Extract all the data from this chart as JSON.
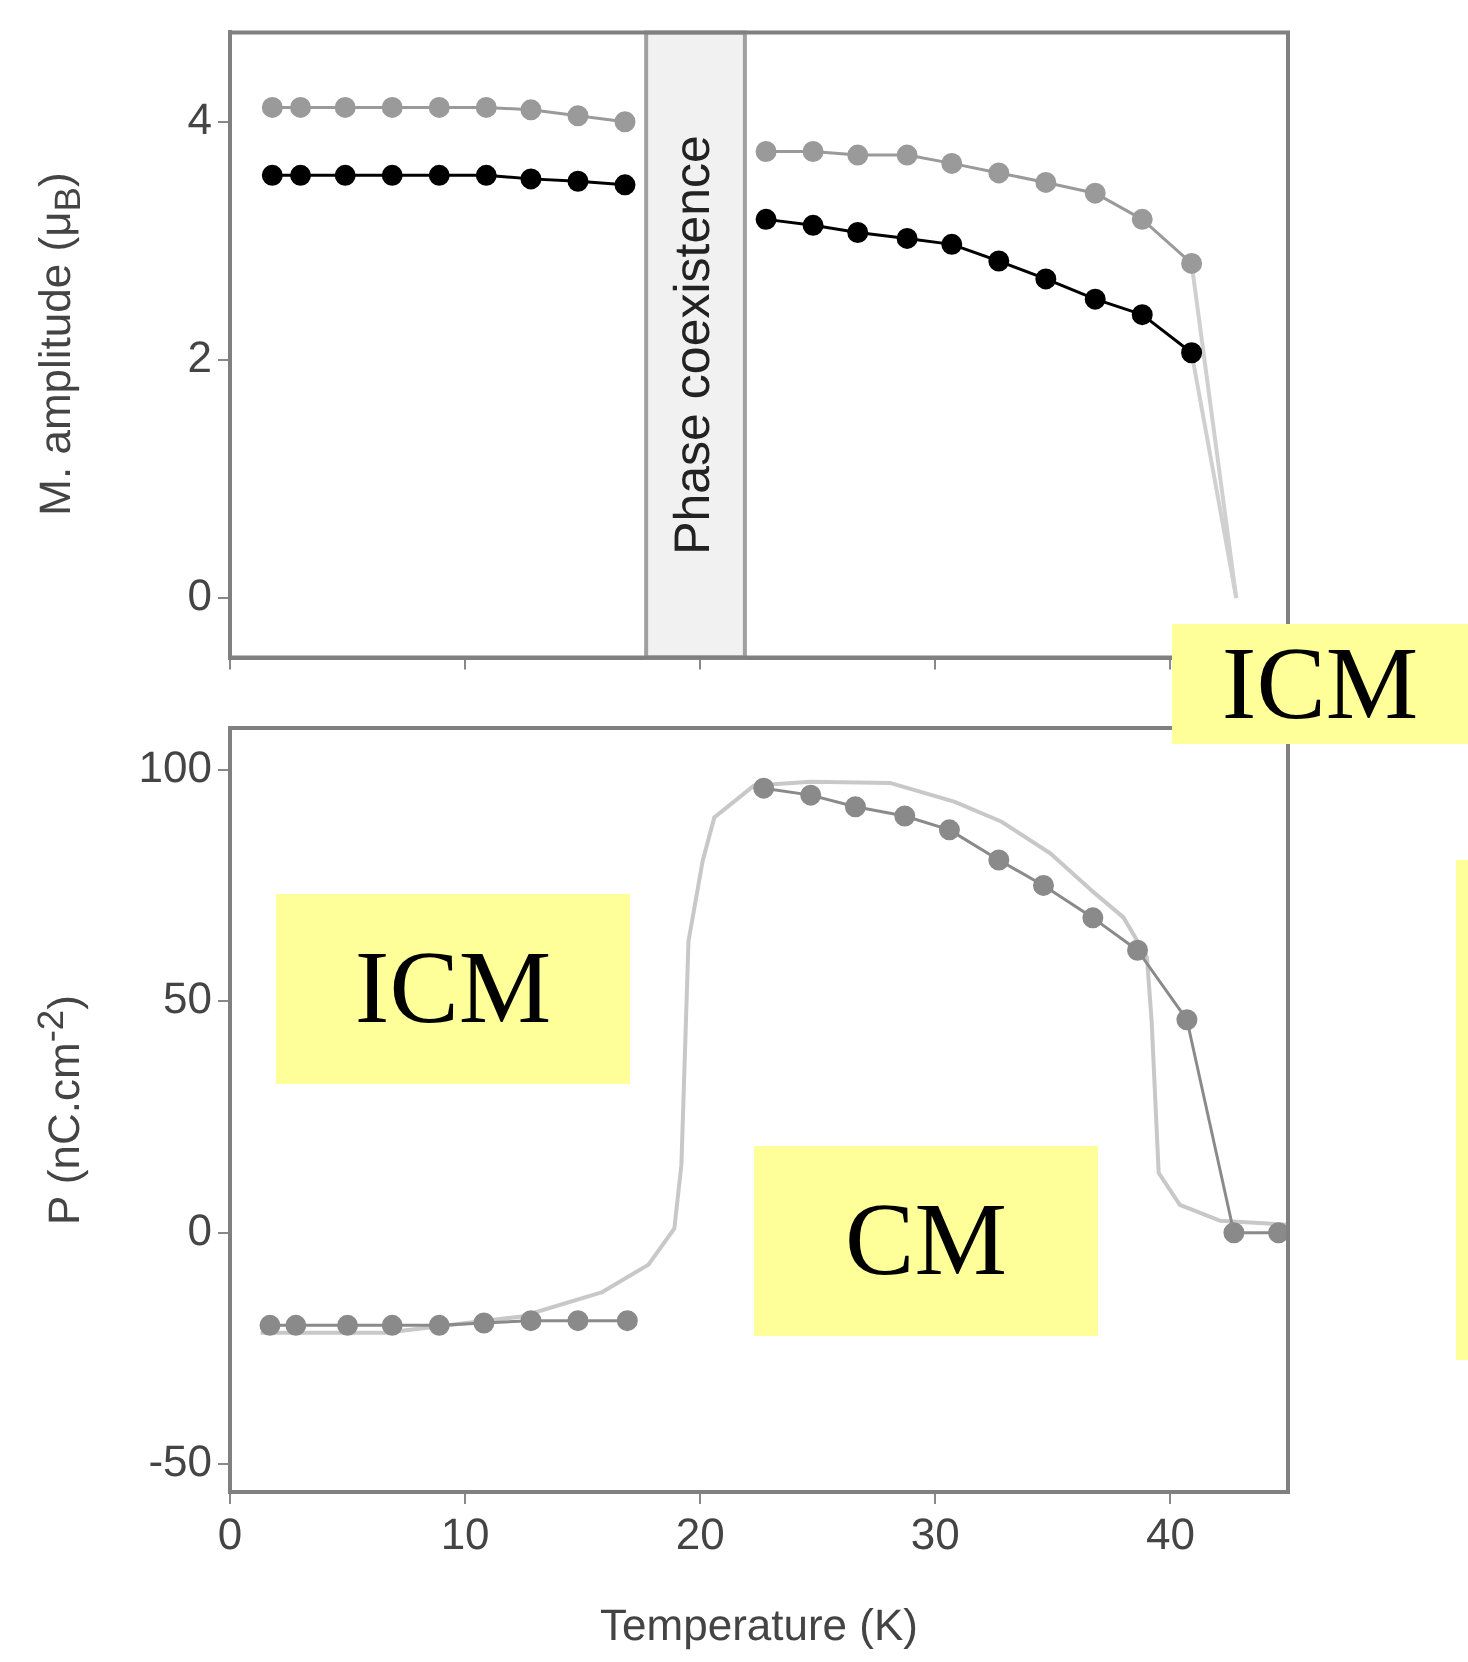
{
  "chart_data": [
    {
      "type": "line",
      "ylabel": "M. amplitude (μ$_{B}$)",
      "xlim": [
        0,
        45
      ],
      "xticks": [
        0,
        10,
        20,
        30,
        40
      ],
      "ylim": [
        -0.5,
        4.75
      ],
      "yticks": [
        0,
        2,
        4
      ],
      "tick_labels": "y",
      "grid": false,
      "legend": false,
      "marker": "circle",
      "bands": [
        {
          "axis": "x",
          "from": 17.7,
          "to": 21.9,
          "label": "Phase coexistence",
          "color": "#a0a0a0"
        }
      ],
      "series": [
        {
          "color": "#9a9a9a",
          "x": [
            1.8,
            3.0,
            4.9,
            6.9,
            8.9,
            10.9,
            12.8,
            14.8,
            16.8
          ],
          "values": [
            4.12,
            4.12,
            4.12,
            4.12,
            4.12,
            4.12,
            4.1,
            4.05,
            4.0
          ]
        },
        {
          "color": "#9a9a9a",
          "x": [
            22.8,
            24.8,
            26.7,
            28.8,
            30.7,
            32.7,
            34.7,
            36.8,
            38.8,
            40.9
          ],
          "values": [
            3.75,
            3.75,
            3.72,
            3.72,
            3.65,
            3.57,
            3.49,
            3.4,
            3.18,
            2.81
          ]
        },
        {
          "color": "#000000",
          "x": [
            1.8,
            3.0,
            4.9,
            6.9,
            8.9,
            10.9,
            12.8,
            14.8,
            16.8
          ],
          "values": [
            3.55,
            3.55,
            3.55,
            3.55,
            3.55,
            3.55,
            3.52,
            3.5,
            3.47
          ]
        },
        {
          "color": "#000000",
          "x": [
            22.8,
            24.8,
            26.7,
            28.8,
            30.7,
            32.7,
            34.7,
            36.8,
            38.8,
            40.9
          ],
          "values": [
            3.18,
            3.13,
            3.07,
            3.02,
            2.97,
            2.83,
            2.68,
            2.51,
            2.38,
            2.06
          ]
        },
        {
          "type": "line",
          "marker": "none",
          "color": "#d0d0d0",
          "x": [
            40.9,
            42.8
          ],
          "values": [
            2.81,
            0
          ]
        },
        {
          "type": "line",
          "marker": "none",
          "color": "#d0d0d0",
          "x": [
            40.9,
            42.8
          ],
          "values": [
            2.06,
            0
          ]
        }
      ]
    },
    {
      "type": "line",
      "xlabel": "Temperature (K)",
      "ylabel": "P (nC.cm$^{-2}$)",
      "xlim": [
        0,
        45
      ],
      "xticks": [
        0,
        10,
        20,
        30,
        40
      ],
      "ylim": [
        -56,
        109
      ],
      "yticks": [
        -50,
        0,
        50,
        100
      ],
      "grid": false,
      "legend": false,
      "marker": "circle",
      "annotations": [
        "ICM",
        "ICM",
        "CM"
      ],
      "series": [
        {
          "type": "line",
          "marker": "none",
          "color": "#c8c8c8",
          "x": [
            1.3,
            6.6,
            12.4,
            15.8,
            17.8,
            18.9,
            19.2,
            19.5,
            20.1,
            20.6,
            22.3,
            24.7,
            28.1,
            30.8,
            32.8,
            34.9,
            36.6,
            38.0,
            39.0,
            39.2,
            39.5,
            40.4,
            42.1,
            45
          ],
          "values": [
            -21.6,
            -21.6,
            -18.1,
            -12.9,
            -6.9,
            0.9,
            14.7,
            62.9,
            80.2,
            89.7,
            96.6,
            97.4,
            97.1,
            93.1,
            88.8,
            81.9,
            74.1,
            68.1,
            59.5,
            45.7,
            12.9,
            6.0,
            2.6,
            1.7
          ]
        },
        {
          "color": "#8a8a8a",
          "x": [
            1.7,
            2.8,
            5.0,
            6.9,
            8.9,
            10.8,
            12.8,
            14.8,
            16.9
          ],
          "values": [
            -20,
            -20,
            -20,
            -20,
            -20,
            -19.5,
            -19,
            -19,
            -19
          ]
        },
        {
          "color": "#8a8a8a",
          "x": [
            22.7,
            24.7,
            26.6,
            28.7,
            30.6,
            32.7,
            34.6,
            36.7,
            38.6,
            40.7,
            42.7,
            44.6
          ],
          "values": [
            96,
            94.5,
            92,
            90,
            87,
            80.5,
            75,
            68,
            61,
            46,
            0,
            0
          ]
        }
      ]
    }
  ]
}
